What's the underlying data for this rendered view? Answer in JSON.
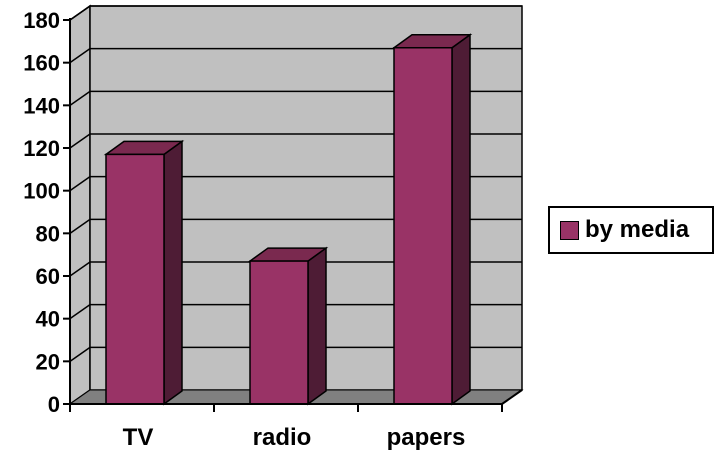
{
  "chart_data": {
    "type": "bar",
    "style": "3d-column",
    "categories": [
      "TV",
      "radio",
      "papers"
    ],
    "series": [
      {
        "name": "by media",
        "values": [
          117,
          67,
          167
        ]
      }
    ],
    "xlabel": "",
    "ylabel": "",
    "ylim": [
      0,
      180
    ],
    "yticks": [
      0,
      20,
      40,
      60,
      80,
      100,
      120,
      140,
      160,
      180
    ],
    "grid": true,
    "legend": "right",
    "colors": {
      "bar_front": "#993366",
      "bar_side": "#4e1c35",
      "bar_top": "#7a294f",
      "wall": "#c0c0c0",
      "floor": "#808080",
      "gridline": "#000000"
    }
  }
}
